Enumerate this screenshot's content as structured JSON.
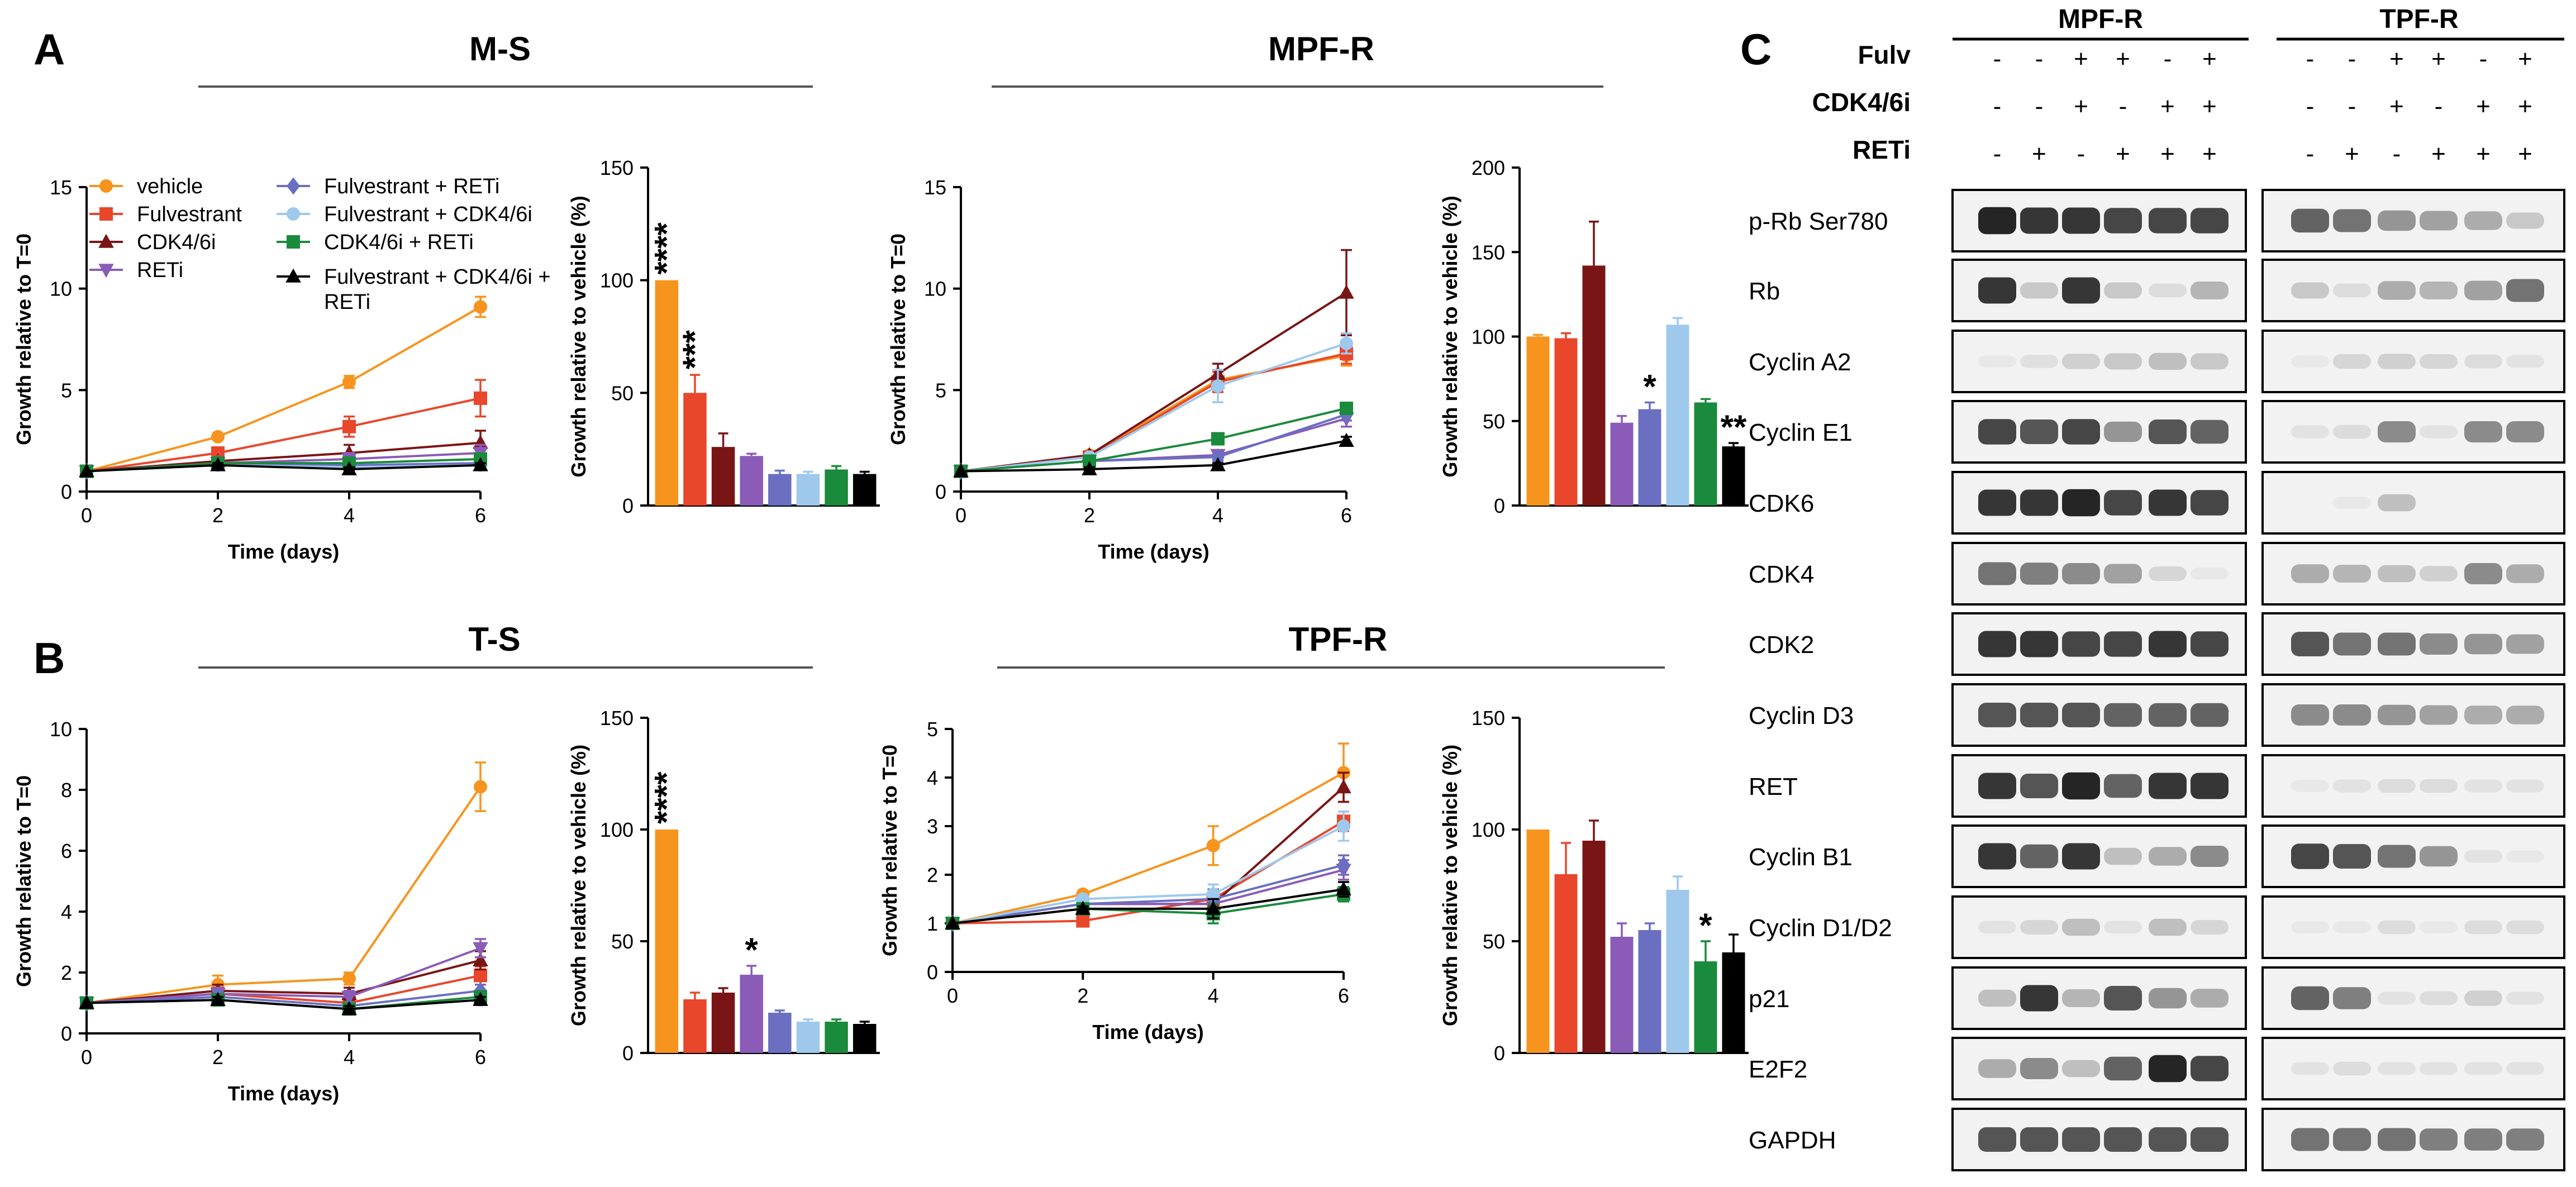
{
  "colors": {
    "vehicle": "#f7941d",
    "fulvestrant": "#e8472c",
    "cdk46i": "#7a1515",
    "reti": "#8a5cb8",
    "fulv_reti": "#6a6fc2",
    "fulv_cdk46i": "#9ec9ec",
    "cdk46i_reti": "#1a8a3c",
    "fulv_cdk46i_reti": "#000000"
  },
  "panels": {
    "A": {
      "letter": "A"
    },
    "B": {
      "letter": "B"
    },
    "C": {
      "letter": "C"
    }
  },
  "legend": [
    {
      "key": "vehicle",
      "label": "vehicle",
      "marker": "circle"
    },
    {
      "key": "fulvestrant",
      "label": "Fulvestrant",
      "marker": "square"
    },
    {
      "key": "cdk46i",
      "label": "CDK4/6i",
      "marker": "triangle"
    },
    {
      "key": "reti",
      "label": "RETi",
      "marker": "triangle-down"
    },
    {
      "key": "fulv_reti",
      "label": "Fulvestrant + RETi",
      "marker": "diamond"
    },
    {
      "key": "fulv_cdk46i",
      "label": "Fulvestrant + CDK4/6i",
      "marker": "circle"
    },
    {
      "key": "cdk46i_reti",
      "label": "CDK4/6i + RETi",
      "marker": "square"
    },
    {
      "key": "fulv_cdk46i_reti",
      "label_line1": "Fulvestrant + CDK4/6i +",
      "label_line2": "RETi",
      "marker": "triangle"
    }
  ],
  "chart_data": [
    {
      "id": "ms_line",
      "type": "line",
      "title": "M-S",
      "xlabel": "Time (days)",
      "ylabel": "Growth relative to T=0",
      "x": [
        0,
        2,
        4,
        6
      ],
      "xlim": [
        0,
        6
      ],
      "xticks": [
        "0",
        "2",
        "4",
        "6"
      ],
      "ylim": [
        0,
        15
      ],
      "yticks": [
        "0",
        "5",
        "10",
        "15"
      ],
      "series": [
        {
          "name": "vehicle",
          "values": [
            1,
            2.7,
            5.4,
            9.1
          ],
          "err": [
            0,
            0.1,
            0.3,
            0.5
          ]
        },
        {
          "name": "Fulvestrant",
          "values": [
            1,
            1.9,
            3.2,
            4.6
          ],
          "err": [
            0,
            0.1,
            0.5,
            0.9
          ]
        },
        {
          "name": "CDK4/6i",
          "values": [
            1,
            1.5,
            1.9,
            2.4
          ],
          "err": [
            0,
            0.1,
            0.4,
            0.6
          ]
        },
        {
          "name": "RETi",
          "values": [
            1,
            1.4,
            1.6,
            1.9
          ],
          "err": [
            0,
            0.1,
            0.3,
            0.4
          ]
        },
        {
          "name": "Fulvestrant + RETi",
          "values": [
            1,
            1.4,
            1.3,
            1.4
          ],
          "err": [
            0,
            0.1,
            0.2,
            0.2
          ]
        },
        {
          "name": "Fulvestrant + CDK4/6i",
          "values": [
            1,
            1.3,
            1.2,
            1.3
          ],
          "err": [
            0,
            0.1,
            0.2,
            0.2
          ]
        },
        {
          "name": "CDK4/6i + RETi",
          "values": [
            1,
            1.4,
            1.4,
            1.6
          ],
          "err": [
            0,
            0.1,
            0.2,
            0.2
          ]
        },
        {
          "name": "Fulvestrant + CDK4/6i + RETi",
          "values": [
            1,
            1.3,
            1.1,
            1.3
          ],
          "err": [
            0,
            0.1,
            0.1,
            0.1
          ]
        }
      ]
    },
    {
      "id": "ms_bar",
      "type": "bar",
      "ylabel": "Growth relative to vehicle (%)",
      "ylim": [
        0,
        150
      ],
      "yticks": [
        "0",
        "50",
        "100",
        "150"
      ],
      "values": [
        100,
        50,
        26,
        22,
        14,
        14,
        16,
        14
      ],
      "err": [
        0,
        8,
        6,
        1,
        1.5,
        1,
        1.5,
        1
      ],
      "annotations": [
        "****",
        "***",
        "",
        "",
        "",
        "",
        "",
        ""
      ]
    },
    {
      "id": "mpfr_line",
      "type": "line",
      "title": "MPF-R",
      "xlabel": "Time (days)",
      "ylabel": "Growth relative to T=0",
      "x": [
        0,
        2,
        4,
        6
      ],
      "xlim": [
        0,
        6
      ],
      "xticks": [
        "0",
        "2",
        "4",
        "6"
      ],
      "ylim": [
        0,
        15
      ],
      "yticks": [
        "0",
        "5",
        "10",
        "15"
      ],
      "series": [
        {
          "name": "vehicle",
          "values": [
            1,
            1.8,
            5.5,
            6.7
          ],
          "err": [
            0,
            0.1,
            0.5,
            0.5
          ]
        },
        {
          "name": "Fulvestrant",
          "values": [
            1,
            1.7,
            5.4,
            6.8
          ],
          "err": [
            0,
            0.1,
            0.5,
            0.5
          ]
        },
        {
          "name": "CDK4/6i",
          "values": [
            1,
            1.8,
            5.8,
            9.8
          ],
          "err": [
            0,
            0.1,
            0.5,
            2.1
          ]
        },
        {
          "name": "RETi",
          "values": [
            1,
            1.5,
            1.8,
            3.6
          ],
          "err": [
            0,
            0.1,
            0.2,
            0.4
          ]
        },
        {
          "name": "Fulvestrant + RETi",
          "values": [
            1,
            1.5,
            1.7,
            3.8
          ],
          "err": [
            0,
            0.1,
            0.2,
            0.3
          ]
        },
        {
          "name": "Fulvestrant + CDK4/6i",
          "values": [
            1,
            1.7,
            5.2,
            7.3
          ],
          "err": [
            0,
            0.1,
            0.8,
            0.5
          ]
        },
        {
          "name": "CDK4/6i + RETi",
          "values": [
            1,
            1.5,
            2.6,
            4.1
          ],
          "err": [
            0,
            0.1,
            0.2,
            0.2
          ]
        },
        {
          "name": "Fulvestrant + CDK4/6i + RETi",
          "values": [
            1,
            1.1,
            1.3,
            2.5
          ],
          "err": [
            0,
            0.1,
            0.1,
            0.2
          ]
        }
      ]
    },
    {
      "id": "mpfr_bar",
      "type": "bar",
      "ylabel": "Growth relative to vehicle (%)",
      "ylim": [
        0,
        200
      ],
      "yticks": [
        "0",
        "50",
        "100",
        "150",
        "200"
      ],
      "values": [
        100,
        99,
        142,
        49,
        57,
        107,
        61,
        35
      ],
      "err": [
        1,
        3,
        26,
        4,
        4,
        4,
        2,
        2
      ],
      "annotations": [
        "",
        "",
        "",
        "",
        "*",
        "",
        "",
        "**"
      ]
    },
    {
      "id": "ts_line",
      "type": "line",
      "title": "T-S",
      "xlabel": "Time (days)",
      "ylabel": "Growth relative to T=0",
      "x": [
        0,
        2,
        4,
        6
      ],
      "xlim": [
        0,
        6
      ],
      "xticks": [
        "0",
        "2",
        "4",
        "6"
      ],
      "ylim": [
        0,
        10
      ],
      "yticks": [
        "0",
        "2",
        "4",
        "6",
        "8",
        "10"
      ],
      "series": [
        {
          "name": "vehicle",
          "values": [
            1,
            1.6,
            1.8,
            8.1
          ],
          "err": [
            0,
            0.3,
            0.2,
            0.8
          ]
        },
        {
          "name": "Fulvestrant",
          "values": [
            1,
            1.3,
            1.0,
            1.9
          ],
          "err": [
            0,
            0.2,
            0.2,
            0.3
          ]
        },
        {
          "name": "CDK4/6i",
          "values": [
            1,
            1.4,
            1.3,
            2.4
          ],
          "err": [
            0,
            0.2,
            0.2,
            0.3
          ]
        },
        {
          "name": "RETi",
          "values": [
            1,
            1.3,
            1.2,
            2.8
          ],
          "err": [
            0,
            0.2,
            0.2,
            0.3
          ]
        },
        {
          "name": "Fulvestrant + RETi",
          "values": [
            1,
            1.2,
            0.9,
            1.4
          ],
          "err": [
            0,
            0.2,
            0.1,
            0.2
          ]
        },
        {
          "name": "Fulvestrant + CDK4/6i",
          "values": [
            1,
            1.1,
            0.8,
            1.1
          ],
          "err": [
            0,
            0.1,
            0.1,
            0.1
          ]
        },
        {
          "name": "CDK4/6i + RETi",
          "values": [
            1,
            1.1,
            0.8,
            1.2
          ],
          "err": [
            0,
            0.1,
            0.1,
            0.1
          ]
        },
        {
          "name": "Fulvestrant + CDK4/6i + RETi",
          "values": [
            1,
            1.1,
            0.8,
            1.1
          ],
          "err": [
            0,
            0.1,
            0.1,
            0.1
          ]
        }
      ]
    },
    {
      "id": "ts_bar",
      "type": "bar",
      "ylabel": "Growth relative to vehicle (%)",
      "ylim": [
        0,
        150
      ],
      "yticks": [
        "0",
        "50",
        "100",
        "150"
      ],
      "values": [
        100,
        24,
        27,
        35,
        18,
        14,
        14,
        13
      ],
      "err": [
        0,
        3,
        2,
        4,
        1,
        1,
        1,
        1
      ],
      "annotations": [
        "****",
        "",
        "",
        "*",
        "",
        "",
        "",
        ""
      ]
    },
    {
      "id": "tpfr_line",
      "type": "line",
      "title": "TPF-R",
      "xlabel": "Time (days)",
      "ylabel": "Growth relative to T=0",
      "x": [
        0,
        2,
        4,
        6
      ],
      "xlim": [
        0,
        6
      ],
      "xticks": [
        "0",
        "2",
        "4",
        "6"
      ],
      "ylim": [
        0,
        5
      ],
      "yticks": [
        "0",
        "1",
        "2",
        "3",
        "4",
        "5"
      ],
      "series": [
        {
          "name": "vehicle",
          "values": [
            1,
            1.6,
            2.6,
            4.1
          ],
          "err": [
            0,
            0.05,
            0.4,
            0.6
          ]
        },
        {
          "name": "Fulvestrant",
          "values": [
            1,
            1.05,
            1.5,
            3.1
          ],
          "err": [
            0,
            0.05,
            0.2,
            0.2
          ]
        },
        {
          "name": "CDK4/6i",
          "values": [
            1,
            1.4,
            1.4,
            3.8
          ],
          "err": [
            0,
            0.05,
            0.2,
            0.3
          ]
        },
        {
          "name": "RETi",
          "values": [
            1,
            1.4,
            1.4,
            2.1
          ],
          "err": [
            0,
            0.05,
            0.2,
            0.2
          ]
        },
        {
          "name": "Fulvestrant + RETi",
          "values": [
            1,
            1.4,
            1.5,
            2.2
          ],
          "err": [
            0,
            0.05,
            0.2,
            0.2
          ]
        },
        {
          "name": "Fulvestrant + CDK4/6i",
          "values": [
            1,
            1.5,
            1.6,
            3.0
          ],
          "err": [
            0,
            0.05,
            0.2,
            0.3
          ]
        },
        {
          "name": "CDK4/6i + RETi",
          "values": [
            1,
            1.3,
            1.2,
            1.6
          ],
          "err": [
            0,
            0.05,
            0.2,
            0.15
          ]
        },
        {
          "name": "Fulvestrant + CDK4/6i + RETi",
          "values": [
            1,
            1.3,
            1.3,
            1.7
          ],
          "err": [
            0,
            0.05,
            0.2,
            0.15
          ]
        }
      ]
    },
    {
      "id": "tpfr_bar",
      "type": "bar",
      "ylabel": "Growth relative to vehicle (%)",
      "ylim": [
        0,
        150
      ],
      "yticks": [
        "0",
        "50",
        "100",
        "150"
      ],
      "values": [
        100,
        80,
        95,
        52,
        55,
        73,
        41,
        45
      ],
      "err": [
        0,
        14,
        9,
        6,
        3,
        6,
        9,
        8
      ],
      "annotations": [
        "",
        "",
        "",
        "",
        "",
        "",
        "*",
        ""
      ]
    }
  ],
  "western": {
    "groups": [
      {
        "label": "MPF-R"
      },
      {
        "label": "TPF-R"
      }
    ],
    "conditions": [
      {
        "label": "Fulv",
        "signs": [
          "-",
          "-",
          "+",
          "+",
          "-",
          "+"
        ]
      },
      {
        "label": "CDK4/6i",
        "signs": [
          "-",
          "-",
          "+",
          "-",
          "+",
          "+"
        ]
      },
      {
        "label": "RETi",
        "signs": [
          "-",
          "+",
          "-",
          "+",
          "+",
          "+"
        ]
      }
    ],
    "rows": [
      {
        "label": "p-Rb  Ser780",
        "mpfr": [
          0.95,
          0.9,
          0.9,
          0.85,
          0.85,
          0.85
        ],
        "tpfr": [
          0.75,
          0.7,
          0.55,
          0.5,
          0.45,
          0.3
        ]
      },
      {
        "label": "Rb",
        "mpfr": [
          0.9,
          0.3,
          0.9,
          0.3,
          0.15,
          0.4
        ],
        "tpfr": [
          0.3,
          0.15,
          0.45,
          0.4,
          0.5,
          0.7
        ]
      },
      {
        "label": "Cyclin A2",
        "mpfr": [
          0.05,
          0.12,
          0.25,
          0.3,
          0.35,
          0.3
        ],
        "tpfr": [
          0.05,
          0.2,
          0.25,
          0.2,
          0.15,
          0.1
        ]
      },
      {
        "label": "Cyclin E1",
        "mpfr": [
          0.85,
          0.8,
          0.85,
          0.55,
          0.8,
          0.75
        ],
        "tpfr": [
          0.1,
          0.15,
          0.6,
          0.1,
          0.6,
          0.6
        ]
      },
      {
        "label": "CDK6",
        "mpfr": [
          0.9,
          0.9,
          0.95,
          0.85,
          0.9,
          0.85
        ],
        "tpfr": [
          0.0,
          0.05,
          0.35,
          0.0,
          0.0,
          0.0
        ]
      },
      {
        "label": "CDK4",
        "mpfr": [
          0.7,
          0.65,
          0.6,
          0.5,
          0.2,
          0.05
        ],
        "tpfr": [
          0.45,
          0.4,
          0.35,
          0.25,
          0.6,
          0.45
        ]
      },
      {
        "label": "CDK2",
        "mpfr": [
          0.9,
          0.9,
          0.85,
          0.85,
          0.9,
          0.85
        ],
        "tpfr": [
          0.8,
          0.7,
          0.7,
          0.6,
          0.55,
          0.5
        ]
      },
      {
        "label": "Cyclin D3",
        "mpfr": [
          0.8,
          0.8,
          0.8,
          0.75,
          0.75,
          0.75
        ],
        "tpfr": [
          0.6,
          0.6,
          0.55,
          0.5,
          0.45,
          0.45
        ]
      },
      {
        "label": "RET",
        "mpfr": [
          0.9,
          0.8,
          0.95,
          0.75,
          0.9,
          0.9
        ],
        "tpfr": [
          0.05,
          0.1,
          0.15,
          0.15,
          0.1,
          0.1
        ]
      },
      {
        "label": "Cyclin B1",
        "mpfr": [
          0.9,
          0.75,
          0.9,
          0.35,
          0.45,
          0.6
        ],
        "tpfr": [
          0.85,
          0.8,
          0.7,
          0.55,
          0.1,
          0.05
        ]
      },
      {
        "label": "Cyclin D1/D2",
        "mpfr": [
          0.1,
          0.2,
          0.35,
          0.1,
          0.35,
          0.2
        ],
        "tpfr": [
          0.05,
          0.05,
          0.15,
          0.05,
          0.15,
          0.15
        ]
      },
      {
        "label": "p21",
        "mpfr": [
          0.35,
          0.9,
          0.4,
          0.8,
          0.55,
          0.45
        ],
        "tpfr": [
          0.75,
          0.65,
          0.1,
          0.15,
          0.25,
          0.1
        ]
      },
      {
        "label": "E2F2",
        "mpfr": [
          0.45,
          0.6,
          0.35,
          0.75,
          0.95,
          0.85
        ],
        "tpfr": [
          0.1,
          0.15,
          0.1,
          0.1,
          0.1,
          0.1
        ]
      },
      {
        "label": "GAPDH",
        "mpfr": [
          0.8,
          0.8,
          0.8,
          0.8,
          0.8,
          0.8
        ],
        "tpfr": [
          0.7,
          0.7,
          0.7,
          0.65,
          0.65,
          0.65
        ]
      }
    ]
  }
}
